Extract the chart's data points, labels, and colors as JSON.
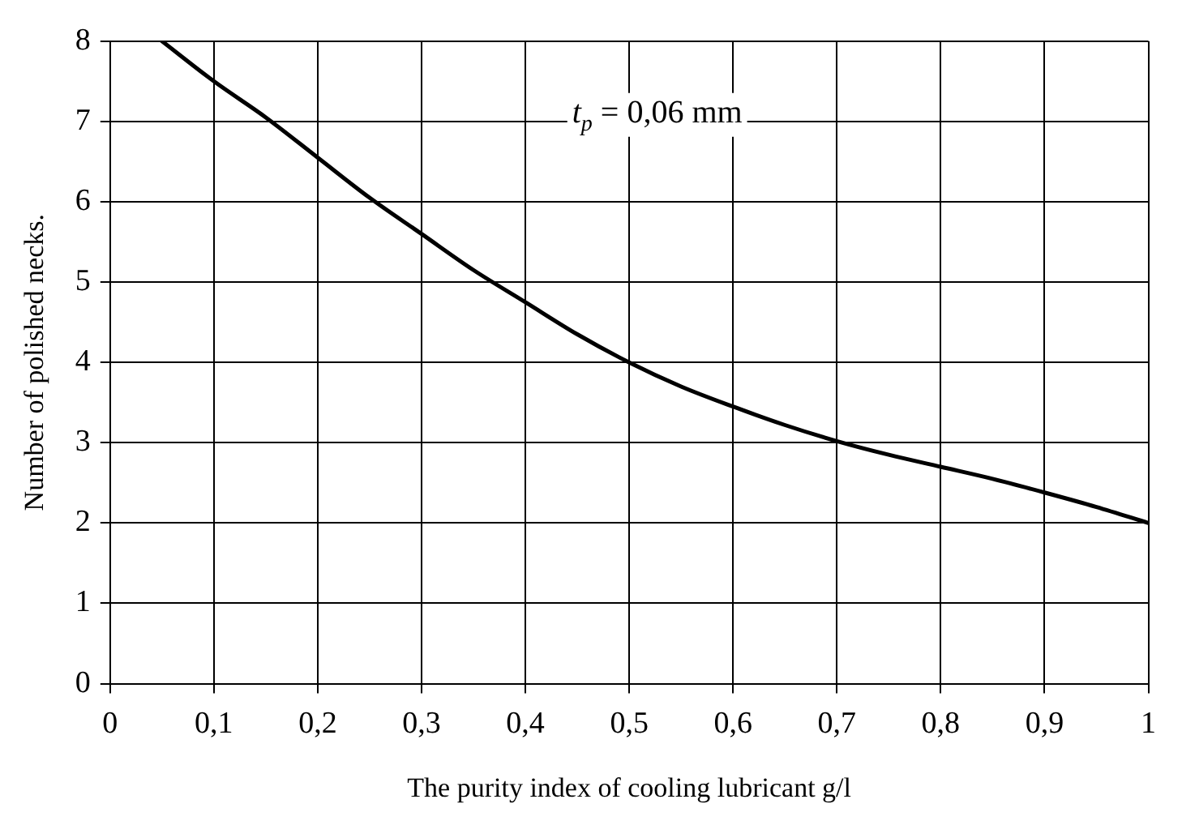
{
  "chart_data": {
    "type": "line",
    "xlabel": "The purity index of cooling lubricant g/l",
    "ylabel": "Number of polished necks.",
    "annotations": [
      "t$_{p}$ = 0,06 mm"
    ],
    "x": [
      0.05,
      0.1,
      0.15,
      0.2,
      0.25,
      0.3,
      0.35,
      0.4,
      0.45,
      0.5,
      0.55,
      0.6,
      0.65,
      0.7,
      0.75,
      0.8,
      0.85,
      0.9,
      0.95,
      1.0
    ],
    "series": [
      {
        "color": "#000000",
        "values": [
          8,
          7.5,
          7.05,
          6.55,
          6.05,
          5.6,
          5.15,
          4.75,
          4.35,
          4.0,
          3.7,
          3.45,
          3.22,
          3.02,
          2.85,
          2.7,
          2.55,
          2.38,
          2.2,
          2.0
        ]
      }
    ],
    "xlim": [
      0,
      1
    ],
    "xticks": [
      0,
      {
        "value": 0.1,
        "label": "0,1"
      },
      {
        "value": 0.2,
        "label": "0,2"
      },
      {
        "value": 0.3,
        "label": "0,3"
      },
      {
        "value": 0.4,
        "label": "0,4"
      },
      {
        "value": 0.5,
        "label": "0,5"
      },
      {
        "value": 0.6,
        "label": "0,6"
      },
      {
        "value": 0.7,
        "label": "0,7"
      },
      {
        "value": 0.8,
        "label": "0,8"
      },
      {
        "value": 0.9,
        "label": "0,9"
      },
      1
    ],
    "ylim": [
      0,
      8
    ],
    "yticks": [
      0,
      1,
      2,
      3,
      4,
      5,
      6,
      7,
      8
    ],
    "grid": true,
    "legend": false,
    "marker": "none",
    "line_style": "solid"
  }
}
